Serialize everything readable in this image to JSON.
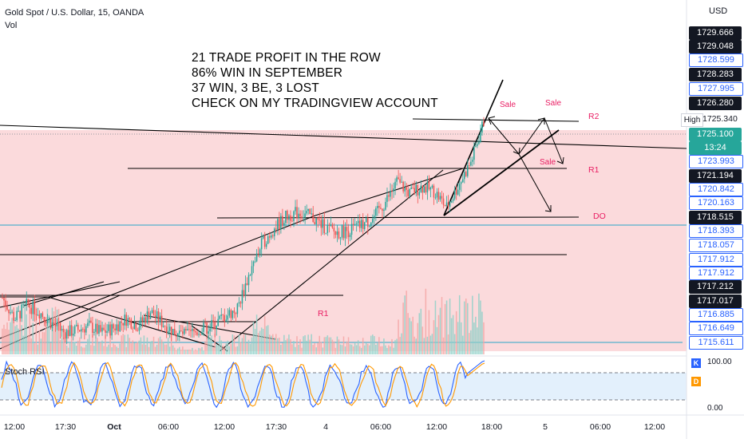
{
  "header": {
    "symbol": "Gold Spot / U.S. Dollar, 15, OANDA",
    "volume_label": "Vol"
  },
  "annotation": [
    "21 TRADE PROFIT IN THE ROW",
    "86% WIN IN SEPTEMBER",
    "37 WIN, 3 BE, 3 LOST",
    "CHECK ON MY TRADINGVIEW  ACCOUNT"
  ],
  "currency": "USD",
  "price_labels": [
    {
      "text": "1729.666",
      "style": "dark"
    },
    {
      "text": "1729.048",
      "style": "dark"
    },
    {
      "text": "1728.599",
      "style": "blue"
    },
    {
      "text": "1728.283",
      "style": "dark"
    },
    {
      "text": "1727.995",
      "style": "blue"
    },
    {
      "text": "1726.280",
      "style": "dark"
    },
    {
      "text": "1725.100",
      "style": "teal"
    },
    {
      "text": "13:24",
      "style": "teal"
    },
    {
      "text": "1723.993",
      "style": "blue"
    },
    {
      "text": "1721.194",
      "style": "dark"
    },
    {
      "text": "1720.842",
      "style": "blue"
    },
    {
      "text": "1720.163",
      "style": "blue"
    },
    {
      "text": "1718.515",
      "style": "dark"
    },
    {
      "text": "1718.393",
      "style": "blue"
    },
    {
      "text": "1718.057",
      "style": "blue"
    },
    {
      "text": "1717.912",
      "style": "blue"
    },
    {
      "text": "1717.912",
      "style": "blue"
    },
    {
      "text": "1717.212",
      "style": "dark"
    },
    {
      "text": "1717.017",
      "style": "dark"
    },
    {
      "text": "1716.885",
      "style": "blue"
    },
    {
      "text": "1716.649",
      "style": "blue"
    },
    {
      "text": "1715.611",
      "style": "blue"
    }
  ],
  "high_marker": {
    "label": "High",
    "value": "1725.340"
  },
  "level_labels": {
    "r2": "R2",
    "r1": "R1",
    "do": "DO",
    "r1_left": "R1"
  },
  "sale_labels": [
    "Sale",
    "Sale",
    "Sale"
  ],
  "stoch": {
    "label": "Stoch RSI",
    "k": "K",
    "d": "D",
    "top": "100.00",
    "bottom": "0.00"
  },
  "chart_data": {
    "type": "candlestick",
    "title": "Gold Spot / U.S. Dollar, 15, OANDA",
    "x_ticks": [
      "12:00",
      "17:30",
      "Oct",
      "06:00",
      "12:00",
      "17:30",
      "4",
      "06:00",
      "12:00",
      "18:00",
      "5",
      "06:00",
      "12:00"
    ],
    "y_unit": "USD",
    "price_path": [
      1717.5,
      1716.6,
      1717.2,
      1716.9,
      1716.4,
      1716.0,
      1716.1,
      1716.3,
      1716.0,
      1716.2,
      1716.6,
      1716.3,
      1716.9,
      1716.4,
      1716.0,
      1715.9,
      1716.1,
      1716.3,
      1716.7,
      1717.0,
      1718.5,
      1719.8,
      1720.5,
      1721.0,
      1721.2,
      1721.0,
      1720.6,
      1720.3,
      1720.4,
      1720.6,
      1720.9,
      1721.6,
      1722.5,
      1722.0,
      1722.3,
      1722.1,
      1721.4,
      1722.4,
      1723.4,
      1725.1
    ],
    "colors": {
      "up": "#26a69a",
      "down": "#ef5350",
      "zone": "#fad4d6",
      "stoch_k": "#2962ff",
      "stoch_d": "#ff9800"
    }
  }
}
